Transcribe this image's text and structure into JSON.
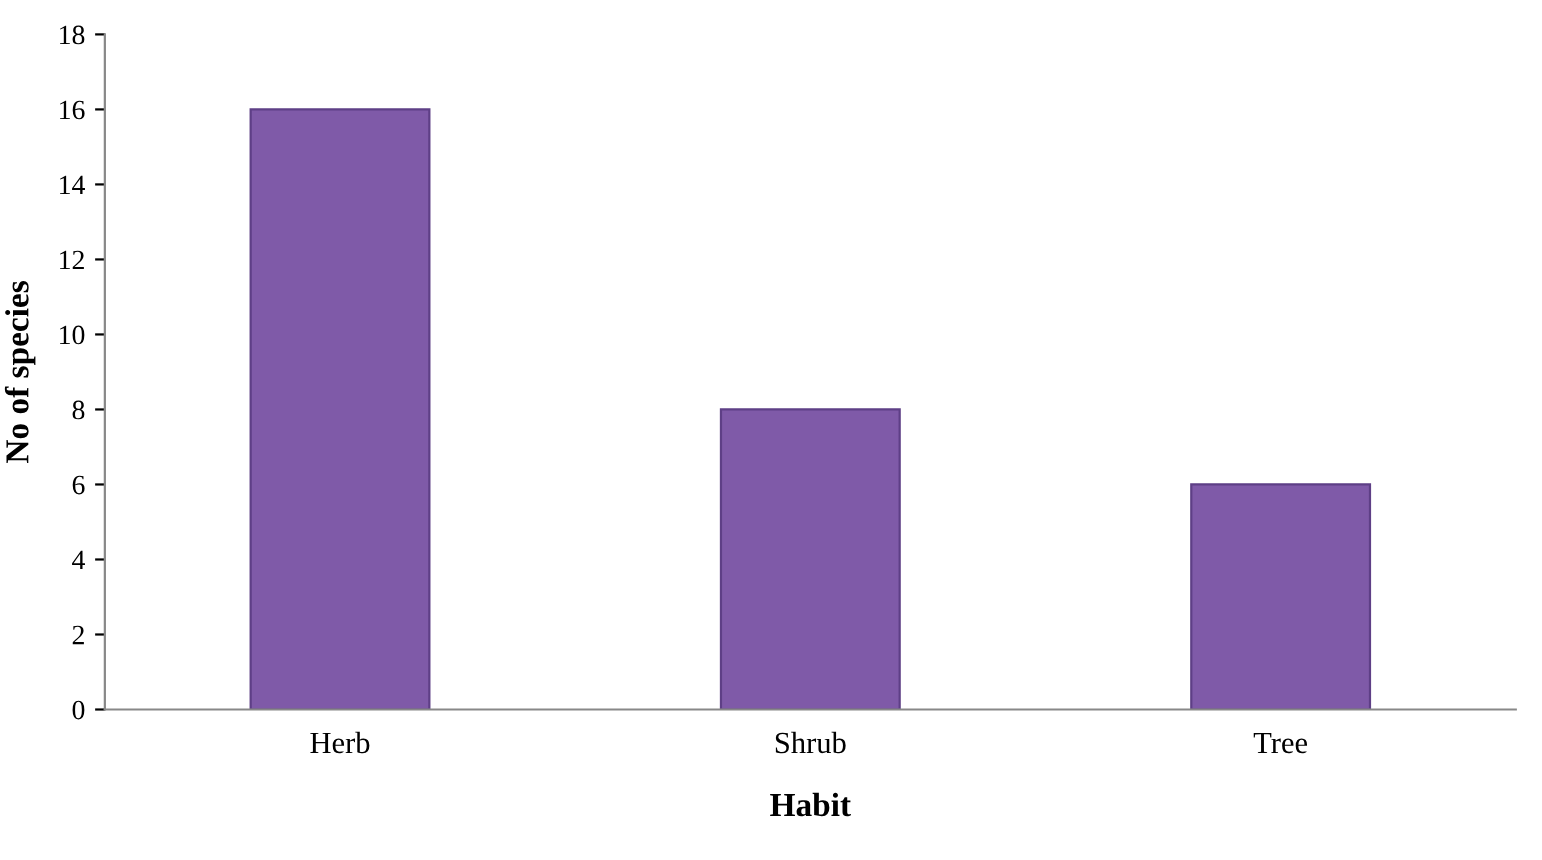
{
  "chart_data": {
    "type": "bar",
    "xlabel": "Habit",
    "ylabel": "No of species",
    "categories": [
      "Herb",
      "Shrub",
      "Tree"
    ],
    "values": [
      16,
      8,
      6
    ],
    "color": "#7f5aa8",
    "ylim": [
      0,
      18
    ],
    "yticks": [
      0,
      2,
      4,
      6,
      8,
      10,
      12,
      14,
      16,
      18
    ],
    "grid": false,
    "legend": false
  }
}
